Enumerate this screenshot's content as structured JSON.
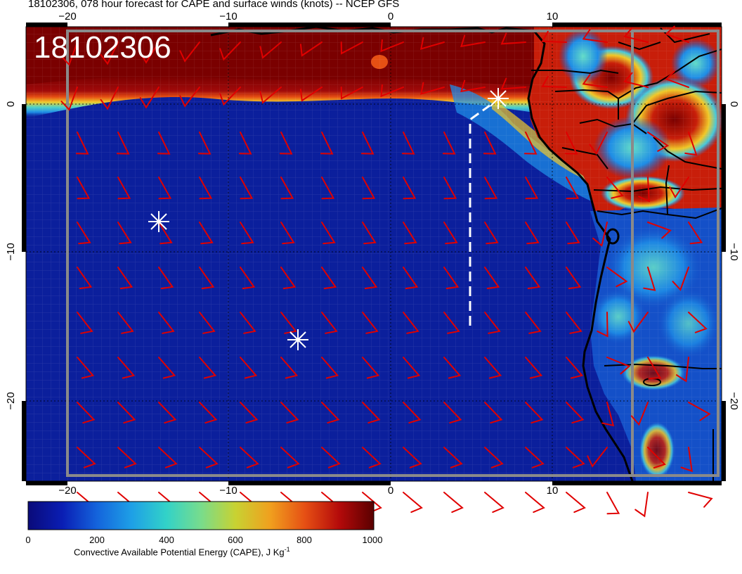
{
  "title": "18102306, 078 hour forecast for CAPE and surface winds (knots) -- NCEP GFS",
  "stamp": "18102306",
  "axes": {
    "x_ticks": [
      -20,
      -10,
      0,
      10
    ],
    "y_ticks": [
      0,
      -10,
      -20
    ],
    "x_tick_labels": [
      "−20",
      "−10",
      "0",
      "10"
    ],
    "y_tick_labels": [
      "0",
      "−10",
      "−20"
    ],
    "lon_range": [
      -22.5,
      20.5
    ],
    "lat_range": [
      -25.5,
      5
    ]
  },
  "colorbar": {
    "ticks": [
      "0",
      "200",
      "400",
      "600",
      "800",
      "1000"
    ],
    "label_main": "Convective Available Potential Energy (CAPE), J Kg",
    "label_sup": "-1",
    "colors": [
      "#0a0a7a",
      "#0a1eb4",
      "#1464dc",
      "#1ea0e6",
      "#32d2c8",
      "#78dc8c",
      "#c8d232",
      "#f0a01e",
      "#e65014",
      "#b40a0a",
      "#7a0000"
    ]
  },
  "colors": {
    "ocean": "#0b1f9c",
    "barb": "#e00000",
    "coast": "#000000",
    "marker": "#ffffff",
    "frame": "#8a8a8a"
  },
  "markers": [
    "asterisk",
    "asterisk",
    "asterisk"
  ],
  "track": "dashed-white-line"
}
